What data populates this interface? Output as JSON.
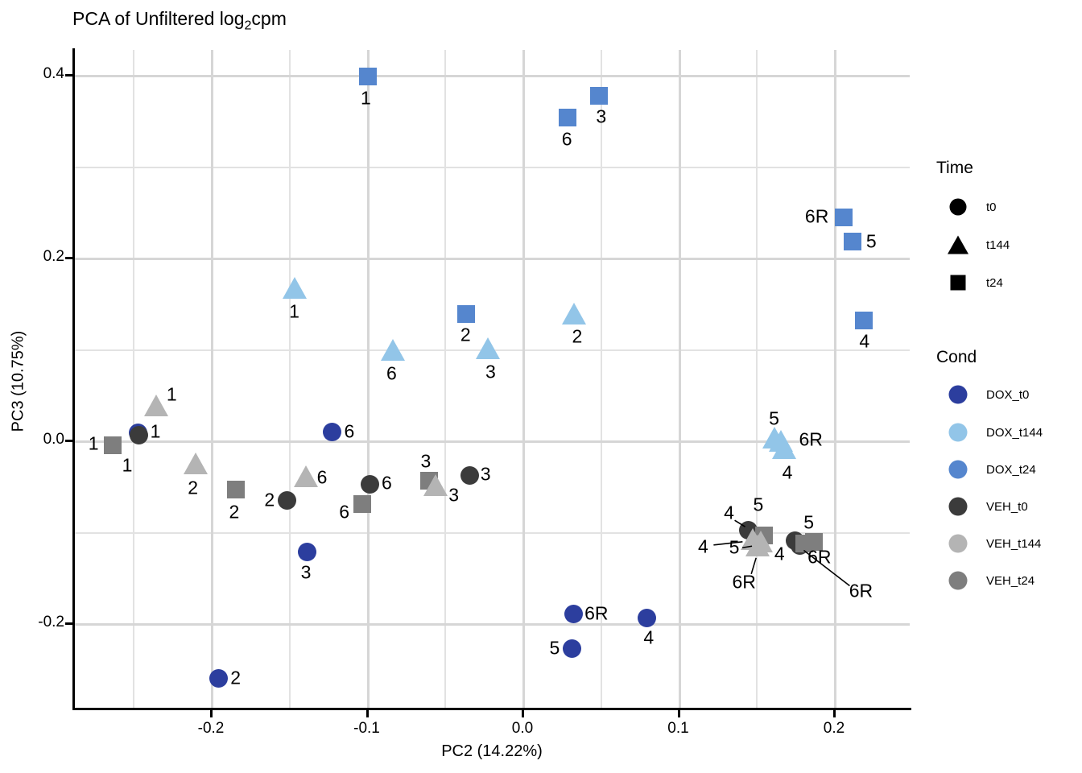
{
  "title": {
    "prefix": "PCA of Unfiltered log",
    "subscript": "2",
    "suffix": "cpm"
  },
  "axes": {
    "x": {
      "label": "PC2 (14.22%)",
      "ticks": [
        {
          "text": "-0.2",
          "value": -0.2
        },
        {
          "text": "-0.1",
          "value": -0.1
        },
        {
          "text": "0.0",
          "value": 0.0
        },
        {
          "text": "0.1",
          "value": 0.1
        },
        {
          "text": "0.2",
          "value": 0.2
        }
      ],
      "minor_gridlines": [
        -0.25,
        -0.15,
        -0.05,
        0.05,
        0.15,
        0.25
      ]
    },
    "y": {
      "label": "PC3 (10.75%)",
      "ticks": [
        {
          "text": "0.4",
          "value": 0.4
        },
        {
          "text": "0.2",
          "value": 0.2
        },
        {
          "text": "0.0",
          "value": 0.0
        },
        {
          "text": "-0.2",
          "value": -0.2
        }
      ],
      "minor_gridlines": [
        0.3,
        0.1,
        -0.1
      ]
    }
  },
  "legend": {
    "time": {
      "title": "Time",
      "items": [
        {
          "label": "t0",
          "shape": "circle"
        },
        {
          "label": "t144",
          "shape": "triangle"
        },
        {
          "label": "t24",
          "shape": "square"
        }
      ]
    },
    "cond": {
      "title": "Cond",
      "items": [
        {
          "label": "DOX_t0",
          "color": "#2C3E9E"
        },
        {
          "label": "DOX_t144",
          "color": "#92C5E8"
        },
        {
          "label": "DOX_t24",
          "color": "#5586CE"
        },
        {
          "label": "VEH_t0",
          "color": "#3B3B3B"
        },
        {
          "label": "VEH_t144",
          "color": "#B4B4B4"
        },
        {
          "label": "VEH_t24",
          "color": "#7E7E7E"
        }
      ]
    }
  },
  "chart_data": {
    "type": "scatter",
    "title": "PCA of Unfiltered log2cpm",
    "xlabel": "PC2 (14.22%)",
    "ylabel": "PC3 (10.75%)",
    "xlim": [
      -0.29,
      0.25
    ],
    "ylim": [
      -0.29,
      0.43
    ],
    "grid": "on",
    "legend_position": "right",
    "series": [
      {
        "name": "DOX_t0",
        "shape": "circle",
        "color": "#2C3E9E",
        "points": [
          {
            "sample": "1",
            "pc2": -0.247,
            "pc3": 0.008,
            "label_offset": [
              22,
              -2
            ],
            "leader": null
          },
          {
            "sample": "6",
            "pc2": -0.122,
            "pc3": 0.009,
            "label_offset": [
              21,
              -1
            ],
            "leader": null
          },
          {
            "sample": "3",
            "pc2": -0.138,
            "pc3": -0.122,
            "label_offset": [
              -2,
              26
            ],
            "leader": null
          },
          {
            "sample": "2",
            "pc2": -0.195,
            "pc3": -0.26,
            "label_offset": [
              21,
              0
            ],
            "leader": null
          },
          {
            "sample": "6R",
            "pc2": 0.033,
            "pc3": -0.19,
            "label_offset": [
              28,
              -1
            ],
            "leader": null
          },
          {
            "sample": "5",
            "pc2": 0.032,
            "pc3": -0.228,
            "label_offset": [
              -22,
              -1
            ],
            "leader": null
          },
          {
            "sample": "4",
            "pc2": 0.08,
            "pc3": -0.194,
            "label_offset": [
              2,
              25
            ],
            "leader": null
          }
        ]
      },
      {
        "name": "DOX_t24",
        "shape": "square",
        "color": "#5586CE",
        "points": [
          {
            "sample": "1",
            "pc2": -0.099,
            "pc3": 0.398,
            "label_offset": [
              -3,
              27
            ],
            "leader": null
          },
          {
            "sample": "2",
            "pc2": -0.036,
            "pc3": 0.138,
            "label_offset": [
              -1,
              26
            ],
            "leader": null
          },
          {
            "sample": "3",
            "pc2": 0.049,
            "pc3": 0.377,
            "label_offset": [
              3,
              26
            ],
            "leader": null
          },
          {
            "sample": "6",
            "pc2": 0.029,
            "pc3": 0.353,
            "label_offset": [
              -1,
              27
            ],
            "leader": null
          },
          {
            "sample": "6R",
            "pc2": 0.206,
            "pc3": 0.244,
            "label_offset": [
              -33,
              -1
            ],
            "leader": null
          },
          {
            "sample": "5",
            "pc2": 0.212,
            "pc3": 0.218,
            "label_offset": [
              23,
              0
            ],
            "leader": null
          },
          {
            "sample": "4",
            "pc2": 0.219,
            "pc3": 0.131,
            "label_offset": [
              1,
              26
            ],
            "leader": null
          }
        ]
      },
      {
        "name": "DOX_t144",
        "shape": "triangle",
        "color": "#92C5E8",
        "points": [
          {
            "sample": "1",
            "pc2": -0.146,
            "pc3": 0.165,
            "label_offset": [
              -1,
              27
            ],
            "leader": null
          },
          {
            "sample": "6",
            "pc2": -0.083,
            "pc3": 0.097,
            "label_offset": [
              -2,
              27
            ],
            "leader": null
          },
          {
            "sample": "3",
            "pc2": -0.022,
            "pc3": 0.099,
            "label_offset": [
              3,
              27
            ],
            "leader": null
          },
          {
            "sample": "2",
            "pc2": 0.033,
            "pc3": 0.137,
            "label_offset": [
              4,
              26
            ],
            "leader": null
          },
          {
            "sample": "5",
            "pc2": 0.162,
            "pc3": 0.001,
            "label_offset": [
              -1,
              -26
            ],
            "leader": null
          },
          {
            "sample": "6R",
            "pc2": 0.166,
            "pc3": -0.003,
            "label_offset": [
              37,
              -4
            ],
            "leader": null
          },
          {
            "sample": "4",
            "pc2": 0.168,
            "pc3": -0.011,
            "label_offset": [
              4,
              28
            ],
            "leader": null
          }
        ]
      },
      {
        "name": "VEH_t0",
        "shape": "circle",
        "color": "#3B3B3B",
        "points": [
          {
            "sample": "1",
            "pc2": -0.246,
            "pc3": 0.006,
            "label_offset": [
              -15,
              38
            ],
            "leader": null
          },
          {
            "sample": "2",
            "pc2": -0.151,
            "pc3": -0.066,
            "label_offset": [
              -22,
              -1
            ],
            "leader": null
          },
          {
            "sample": "6",
            "pc2": -0.098,
            "pc3": -0.048,
            "label_offset": [
              21,
              -1
            ],
            "leader": null
          },
          {
            "sample": "3",
            "pc2": -0.034,
            "pc3": -0.038,
            "label_offset": [
              20,
              -1
            ],
            "leader": null
          },
          {
            "sample": "4",
            "pc2": 0.145,
            "pc3": -0.098,
            "label_offset": [
              -24,
              -21
            ],
            "leader": [
              [
                -17,
                -12
              ],
              [
                -4,
                -4
              ]
            ]
          },
          {
            "sample": "5",
            "pc2": 0.175,
            "pc3": -0.11,
            "label_offset": [
              17,
              -23
            ],
            "leader": null
          },
          {
            "sample": "6R",
            "pc2": 0.178,
            "pc3": -0.115,
            "label_offset": [
              76,
              56
            ],
            "leader": [
              [
                5,
                6
              ],
              [
                62,
                50
              ]
            ]
          }
        ]
      },
      {
        "name": "VEH_t24",
        "shape": "square",
        "color": "#7E7E7E",
        "points": [
          {
            "sample": "1",
            "pc2": -0.263,
            "pc3": -0.005,
            "label_offset": [
              -24,
              -2
            ],
            "leader": null
          },
          {
            "sample": "2",
            "pc2": -0.184,
            "pc3": -0.054,
            "label_offset": [
              -2,
              28
            ],
            "leader": null
          },
          {
            "sample": "6",
            "pc2": -0.103,
            "pc3": -0.07,
            "label_offset": [
              -22,
              10
            ],
            "leader": null
          },
          {
            "sample": "3",
            "pc2": -0.06,
            "pc3": -0.044,
            "label_offset": [
              -4,
              -24
            ],
            "leader": null
          },
          {
            "sample": "4",
            "pc2": 0.181,
            "pc3": -0.113,
            "label_offset": [
              -31,
              13
            ],
            "leader": null
          },
          {
            "sample": "5",
            "pc2": 0.155,
            "pc3": -0.104,
            "label_offset": [
              -7,
              -38
            ],
            "leader": null
          },
          {
            "sample": "6R",
            "pc2": 0.187,
            "pc3": -0.111,
            "label_offset": [
              7,
              19
            ],
            "leader": null
          }
        ]
      },
      {
        "name": "VEH_t144",
        "shape": "triangle",
        "color": "#B4B4B4",
        "points": [
          {
            "sample": "1",
            "pc2": -0.235,
            "pc3": 0.036,
            "label_offset": [
              19,
              -16
            ],
            "leader": null
          },
          {
            "sample": "2",
            "pc2": -0.21,
            "pc3": -0.027,
            "label_offset": [
              -3,
              28
            ],
            "leader": null
          },
          {
            "sample": "6",
            "pc2": -0.139,
            "pc3": -0.041,
            "label_offset": [
              20,
              -1
            ],
            "leader": null
          },
          {
            "sample": "3",
            "pc2": -0.056,
            "pc3": -0.051,
            "label_offset": [
              23,
              10
            ],
            "leader": null
          },
          {
            "sample": "4",
            "pc2": 0.148,
            "pc3": -0.11,
            "label_offset": [
              -62,
              7
            ],
            "leader": [
              [
                -49,
                5
              ],
              [
                -13,
                1
              ]
            ]
          },
          {
            "sample": "5",
            "pc2": 0.153,
            "pc3": -0.113,
            "label_offset": [
              -33,
              5
            ],
            "leader": [
              [
                -23,
                5
              ],
              [
                -11,
                3
              ]
            ]
          },
          {
            "sample": "6R",
            "pc2": 0.151,
            "pc3": -0.117,
            "label_offset": [
              -17,
              43
            ],
            "leader": [
              [
                -8,
                33
              ],
              [
                -2,
                13
              ]
            ]
          }
        ]
      }
    ]
  }
}
